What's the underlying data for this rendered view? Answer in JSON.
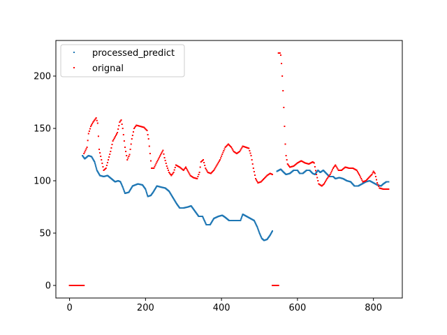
{
  "chart_data": {
    "type": "scatter",
    "title": "",
    "xlabel": "",
    "ylabel": "",
    "xlim": [
      -36,
      876
    ],
    "ylim": [
      -12,
      234
    ],
    "xticks": [
      0,
      200,
      400,
      600,
      800
    ],
    "yticks": [
      0,
      50,
      100,
      150,
      200
    ],
    "grid": false,
    "legend_position": "upper-left",
    "series": [
      {
        "name": "processed_predict",
        "color": "#1f77b4",
        "anchors": [
          [
            34,
            124
          ],
          [
            40,
            121
          ],
          [
            50,
            124
          ],
          [
            58,
            123
          ],
          [
            66,
            118
          ],
          [
            72,
            110
          ],
          [
            80,
            105
          ],
          [
            90,
            104
          ],
          [
            100,
            105
          ],
          [
            110,
            102
          ],
          [
            120,
            99
          ],
          [
            128,
            100
          ],
          [
            134,
            99
          ],
          [
            140,
            94
          ],
          [
            146,
            88
          ],
          [
            156,
            89
          ],
          [
            166,
            95
          ],
          [
            180,
            97
          ],
          [
            192,
            96
          ],
          [
            200,
            92
          ],
          [
            206,
            85
          ],
          [
            214,
            86
          ],
          [
            220,
            89
          ],
          [
            230,
            95
          ],
          [
            240,
            94
          ],
          [
            252,
            93
          ],
          [
            262,
            90
          ],
          [
            272,
            84
          ],
          [
            282,
            78
          ],
          [
            290,
            74
          ],
          [
            300,
            74
          ],
          [
            312,
            75
          ],
          [
            320,
            76
          ],
          [
            330,
            71
          ],
          [
            340,
            66
          ],
          [
            350,
            66
          ],
          [
            360,
            58
          ],
          [
            370,
            58
          ],
          [
            380,
            64
          ],
          [
            392,
            66
          ],
          [
            402,
            67
          ],
          [
            410,
            65
          ],
          [
            420,
            62
          ],
          [
            440,
            62
          ],
          [
            450,
            62
          ],
          [
            456,
            68
          ],
          [
            466,
            66
          ],
          [
            476,
            64
          ],
          [
            486,
            62
          ],
          [
            494,
            56
          ],
          [
            500,
            50
          ],
          [
            506,
            45
          ],
          [
            512,
            43
          ],
          [
            520,
            44
          ],
          [
            528,
            48
          ],
          [
            534,
            52
          ]
        ],
        "anchors_2": [
          [
            546,
            109
          ],
          [
            556,
            111
          ],
          [
            564,
            108
          ],
          [
            570,
            106
          ],
          [
            580,
            107
          ],
          [
            590,
            110
          ],
          [
            600,
            110
          ],
          [
            606,
            107
          ],
          [
            614,
            107
          ],
          [
            624,
            110
          ],
          [
            632,
            110
          ],
          [
            640,
            107
          ],
          [
            646,
            106
          ],
          [
            654,
            110
          ],
          [
            660,
            108
          ],
          [
            668,
            110
          ],
          [
            676,
            107
          ],
          [
            684,
            104
          ],
          [
            694,
            104
          ],
          [
            700,
            102
          ],
          [
            710,
            103
          ],
          [
            720,
            102
          ],
          [
            730,
            100
          ],
          [
            740,
            99
          ],
          [
            750,
            95
          ],
          [
            760,
            95
          ],
          [
            770,
            97
          ],
          [
            780,
            99
          ],
          [
            790,
            100
          ],
          [
            800,
            98
          ],
          [
            810,
            96
          ],
          [
            820,
            95
          ],
          [
            826,
            97
          ],
          [
            834,
            99
          ],
          [
            840,
            99
          ]
        ]
      },
      {
        "name": "orignal",
        "color": "#ff0000",
        "zeros_1": [
          0,
          38
        ],
        "anchors": [
          [
            38,
            126
          ],
          [
            42,
            129
          ],
          [
            46,
            132
          ],
          [
            50,
            145
          ],
          [
            56,
            152
          ],
          [
            62,
            156
          ],
          [
            70,
            160
          ],
          [
            74,
            155
          ],
          [
            78,
            130
          ],
          [
            84,
            120
          ],
          [
            90,
            110
          ],
          [
            96,
            112
          ],
          [
            102,
            120
          ],
          [
            108,
            128
          ],
          [
            114,
            138
          ],
          [
            120,
            142
          ],
          [
            126,
            146
          ],
          [
            132,
            156
          ],
          [
            136,
            158
          ],
          [
            140,
            150
          ],
          [
            146,
            132
          ],
          [
            152,
            120
          ],
          [
            158,
            125
          ],
          [
            164,
            140
          ],
          [
            170,
            150
          ],
          [
            176,
            153
          ],
          [
            186,
            152
          ],
          [
            196,
            151
          ],
          [
            204,
            148
          ],
          [
            208,
            140
          ],
          [
            212,
            126
          ],
          [
            216,
            112
          ],
          [
            222,
            112
          ],
          [
            230,
            118
          ],
          [
            240,
            125
          ],
          [
            246,
            129
          ],
          [
            250,
            122
          ],
          [
            256,
            114
          ],
          [
            262,
            108
          ],
          [
            268,
            105
          ],
          [
            274,
            108
          ],
          [
            280,
            115
          ],
          [
            290,
            113
          ],
          [
            300,
            110
          ],
          [
            306,
            113
          ],
          [
            312,
            109
          ],
          [
            318,
            105
          ],
          [
            326,
            103
          ],
          [
            336,
            102
          ],
          [
            342,
            108
          ],
          [
            346,
            118
          ],
          [
            352,
            120
          ],
          [
            358,
            112
          ],
          [
            364,
            108
          ],
          [
            372,
            107
          ],
          [
            380,
            110
          ],
          [
            388,
            115
          ],
          [
            396,
            120
          ],
          [
            404,
            127
          ],
          [
            410,
            132
          ],
          [
            418,
            135
          ],
          [
            426,
            132
          ],
          [
            432,
            128
          ],
          [
            440,
            126
          ],
          [
            448,
            128
          ],
          [
            456,
            133
          ],
          [
            464,
            132
          ],
          [
            472,
            131
          ],
          [
            478,
            124
          ],
          [
            484,
            112
          ],
          [
            490,
            102
          ],
          [
            496,
            98
          ],
          [
            504,
            99
          ],
          [
            512,
            102
          ],
          [
            520,
            105
          ],
          [
            528,
            107
          ],
          [
            534,
            106
          ]
        ],
        "zeros_2": [
          534,
          550
        ],
        "spike": [
          [
            550,
            222
          ],
          [
            554,
            222
          ],
          [
            556,
            220
          ],
          [
            558,
            212
          ],
          [
            560,
            200
          ],
          [
            562,
            186
          ],
          [
            564,
            170
          ],
          [
            566,
            152
          ],
          [
            568,
            135
          ],
          [
            570,
            124
          ],
          [
            574,
            116
          ],
          [
            580,
            113
          ],
          [
            590,
            114
          ],
          [
            600,
            117
          ],
          [
            610,
            119
          ],
          [
            620,
            117
          ],
          [
            630,
            116
          ],
          [
            640,
            118
          ],
          [
            644,
            117
          ],
          [
            650,
            106
          ],
          [
            656,
            97
          ],
          [
            664,
            95
          ],
          [
            670,
            97
          ],
          [
            678,
            102
          ],
          [
            686,
            106
          ],
          [
            694,
            112
          ],
          [
            700,
            115
          ],
          [
            708,
            110
          ],
          [
            716,
            110
          ],
          [
            726,
            113
          ],
          [
            736,
            112
          ],
          [
            746,
            112
          ],
          [
            756,
            110
          ],
          [
            764,
            105
          ],
          [
            772,
            99
          ],
          [
            780,
            100
          ],
          [
            788,
            103
          ],
          [
            796,
            106
          ],
          [
            800,
            109
          ],
          [
            804,
            107
          ],
          [
            810,
            98
          ],
          [
            816,
            93
          ],
          [
            826,
            92
          ],
          [
            840,
            92
          ]
        ]
      }
    ]
  }
}
